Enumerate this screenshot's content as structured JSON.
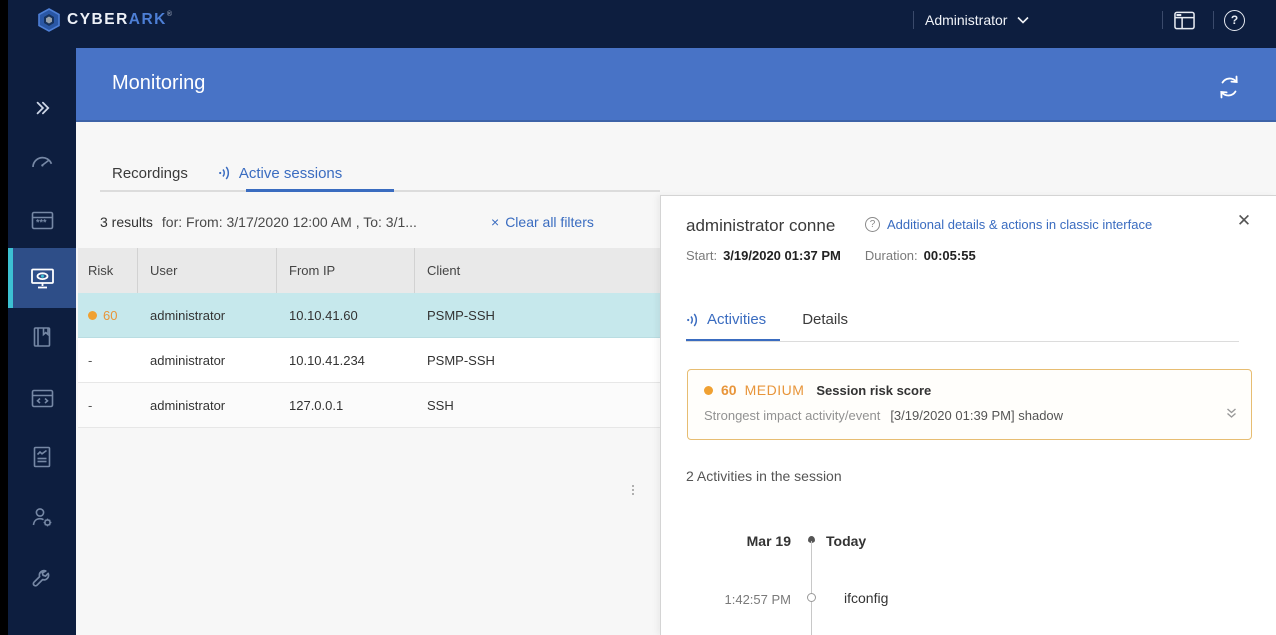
{
  "topbar": {
    "brand_primary": "CYBER",
    "brand_secondary": "ARK",
    "brand_reg": "®",
    "user_menu_label": "Administrator"
  },
  "sidebar": {
    "items": [
      {
        "name": "expand",
        "icon": "double-chevron-right-icon"
      },
      {
        "name": "dashboard",
        "icon": "gauge-icon"
      },
      {
        "name": "accounts",
        "icon": "window-asterisks-icon"
      },
      {
        "name": "monitoring",
        "icon": "monitor-eye-icon",
        "active": true
      },
      {
        "name": "policies",
        "icon": "book-bookmark-icon"
      },
      {
        "name": "applications",
        "icon": "window-code-icon"
      },
      {
        "name": "reports",
        "icon": "report-chart-icon"
      },
      {
        "name": "user-management",
        "icon": "user-gear-icon"
      },
      {
        "name": "administration",
        "icon": "wrench-icon"
      }
    ]
  },
  "header": {
    "title": "Monitoring"
  },
  "tabs": {
    "recordings": "Recordings",
    "active_sessions": "Active sessions"
  },
  "filters": {
    "results": "3 results",
    "criteria": "for: From: 3/17/2020 12:00 AM , To: 3/1...",
    "clear_label": "Clear all filters",
    "clear_x": "×"
  },
  "table": {
    "columns": [
      "Risk",
      "User",
      "From IP",
      "Client"
    ],
    "rows": [
      {
        "risk": "60",
        "risk_dot": true,
        "user": "administrator",
        "from_ip": "10.10.41.60",
        "client": "PSMP-SSH",
        "selected": true
      },
      {
        "risk": "-",
        "risk_dot": false,
        "user": "administrator",
        "from_ip": "10.10.41.234",
        "client": "PSMP-SSH",
        "selected": false
      },
      {
        "risk": "-",
        "risk_dot": false,
        "user": "administrator",
        "from_ip": "127.0.0.1",
        "client": "SSH",
        "selected": false
      }
    ]
  },
  "panel": {
    "title": "administrator conne",
    "classic_link": "Additional details & actions in classic interface",
    "help_glyph": "?",
    "close_glyph": "✕",
    "start_label": "Start:",
    "start_value": "3/19/2020 01:37 PM",
    "duration_label": "Duration:",
    "duration_value": "00:05:55",
    "tabs": {
      "activities": "Activities",
      "details": "Details"
    },
    "risk": {
      "score": "60",
      "level": "MEDIUM",
      "label": "Session risk score",
      "impact_label": "Strongest impact activity/event",
      "impact_value": "[3/19/2020 01:39 PM] shadow"
    },
    "activities_count": "2 Activities in the session",
    "timeline": {
      "date": "Mar 19",
      "header": "Today",
      "events": [
        {
          "time": "1:42:57 PM",
          "label": "ifconfig"
        }
      ]
    }
  },
  "colors": {
    "navy": "#0d1e3f",
    "header_blue": "#4873c6",
    "accent_blue": "#3a6cc0",
    "teal_accent": "#3cc1d3",
    "selected_row_cyan": "#c6e8ec",
    "risk_orange": "#e8953a",
    "risk_dot_orange": "#f0a132",
    "risk_box_border": "#e7bd72",
    "content_bg": "#f7f7f7"
  }
}
